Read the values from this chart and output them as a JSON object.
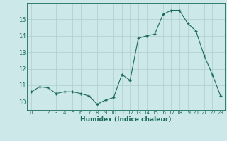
{
  "x": [
    0,
    1,
    2,
    3,
    4,
    5,
    6,
    7,
    8,
    9,
    10,
    11,
    12,
    13,
    14,
    15,
    16,
    17,
    18,
    19,
    20,
    21,
    22,
    23
  ],
  "y": [
    10.6,
    10.9,
    10.85,
    10.5,
    10.6,
    10.6,
    10.5,
    10.35,
    9.85,
    10.1,
    10.25,
    11.65,
    11.3,
    13.85,
    14.0,
    14.1,
    15.3,
    15.55,
    15.55,
    14.75,
    14.3,
    12.8,
    11.65,
    10.35
  ],
  "line_color": "#1a6b5a",
  "marker": "+",
  "marker_size": 3,
  "bg_color": "#cce8e8",
  "grid_color": "#b0cece",
  "tick_color": "#1a6b5a",
  "label_color": "#1a6b5a",
  "xlabel": "Humidex (Indice chaleur)",
  "ylim": [
    9.5,
    16.0
  ],
  "yticks": [
    10,
    11,
    12,
    13,
    14,
    15
  ],
  "xticks": [
    0,
    1,
    2,
    3,
    4,
    5,
    6,
    7,
    8,
    9,
    10,
    11,
    12,
    13,
    14,
    15,
    16,
    17,
    18,
    19,
    20,
    21,
    22,
    23
  ],
  "xlim": [
    -0.5,
    23.5
  ]
}
